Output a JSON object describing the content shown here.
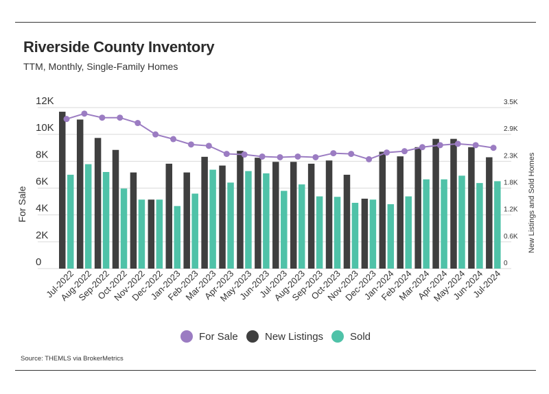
{
  "header": {
    "title": "Riverside County Inventory",
    "subtitle": "TTM, Monthly, Single-Family Homes"
  },
  "footer": {
    "source": "Source:  THEMLS via BrokerMetrics"
  },
  "colors": {
    "for_sale": "#9b7cc2",
    "new_listings": "#3f3f3f",
    "sold": "#4fc2a8",
    "grid": "#d9d9d9"
  },
  "chart_data": {
    "type": "bar",
    "categories": [
      "Jul-2022",
      "Aug-2022",
      "Sep-2022",
      "Oct-2022",
      "Nov-2022",
      "Dec-2022",
      "Jan-2023",
      "Feb-2023",
      "Mar-2023",
      "Apr-2023",
      "May-2023",
      "Jun-2023",
      "Jul-2023",
      "Aug-2023",
      "Sep-2023",
      "Oct-2023",
      "Nov-2023",
      "Dec-2023",
      "Jan-2024",
      "Feb-2024",
      "Mar-2024",
      "Apr-2024",
      "May-2024",
      "Jun-2024",
      "Jul-2024"
    ],
    "ylabel": "For Sale",
    "y2label": "New Listings and Sold Homes",
    "ylim": [
      0,
      12000
    ],
    "y2lim": [
      0,
      3500
    ],
    "yticks": [
      "0",
      "2K",
      "4K",
      "6K",
      "8K",
      "10K",
      "12K"
    ],
    "y2ticks": [
      "0",
      "0.6K",
      "1.2K",
      "1.8K",
      "2.3K",
      "2.9K",
      "3.5K"
    ],
    "grid": true,
    "legend_position": "bottom",
    "series": [
      {
        "name": "For Sale",
        "type": "line",
        "axis": "left",
        "values": [
          11150,
          11550,
          11250,
          11250,
          10850,
          10000,
          9650,
          9250,
          9150,
          8550,
          8500,
          8350,
          8300,
          8350,
          8300,
          8600,
          8550,
          8150,
          8650,
          8750,
          9050,
          9200,
          9300,
          9200,
          9000
        ]
      },
      {
        "name": "New Listings",
        "type": "bar",
        "axis": "right",
        "values": [
          3410,
          3240,
          2840,
          2580,
          2090,
          1500,
          2280,
          2090,
          2430,
          2240,
          2560,
          2410,
          2320,
          2320,
          2280,
          2350,
          2040,
          1520,
          2540,
          2440,
          2640,
          2820,
          2820,
          2640,
          2420
        ]
      },
      {
        "name": "Sold",
        "type": "bar",
        "axis": "right",
        "values": [
          2040,
          2270,
          2100,
          1740,
          1500,
          1500,
          1360,
          1630,
          2150,
          1870,
          2120,
          2070,
          1690,
          1830,
          1570,
          1560,
          1430,
          1500,
          1400,
          1570,
          1940,
          1940,
          2020,
          1860,
          1900
        ]
      }
    ]
  }
}
